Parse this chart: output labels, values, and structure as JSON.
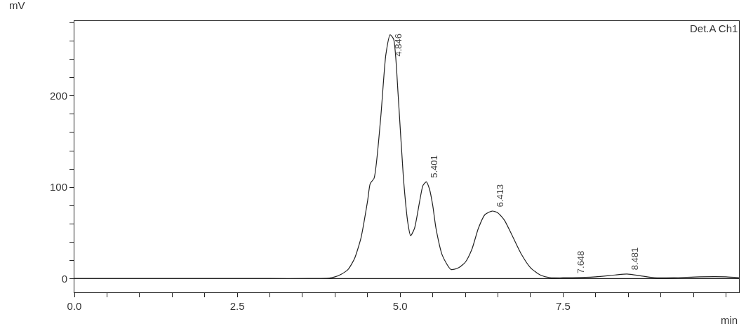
{
  "chart_data": {
    "type": "line",
    "xlabel": "min",
    "ylabel": "mV",
    "x": [
      0,
      1,
      2,
      3,
      3.6,
      3.9,
      4.0,
      4.1,
      4.2,
      4.3,
      4.4,
      4.5,
      4.54,
      4.6,
      4.7,
      4.78,
      4.846,
      4.9,
      4.97,
      5.05,
      5.12,
      5.16,
      5.22,
      5.3,
      5.35,
      5.401,
      5.45,
      5.5,
      5.55,
      5.65,
      5.78,
      5.9,
      6.0,
      6.1,
      6.2,
      6.3,
      6.413,
      6.5,
      6.6,
      6.7,
      6.85,
      7.0,
      7.15,
      7.3,
      7.5,
      7.65,
      8.0,
      8.3,
      8.481,
      8.7,
      8.9,
      9.2,
      9.6,
      10.0,
      10.2
    ],
    "series": [
      {
        "color": "#222222",
        "values": [
          0,
          0,
          0,
          0,
          0,
          0.5,
          2,
          5,
          10,
          22,
          45,
          85,
          104,
          110,
          175,
          245,
          267,
          262,
          200,
          110,
          60,
          47,
          55,
          85,
          102,
          106,
          98,
          80,
          55,
          25,
          10,
          12,
          18,
          32,
          55,
          70,
          74,
          72,
          64,
          50,
          28,
          12,
          4,
          1,
          1,
          1,
          2,
          4,
          5,
          3,
          1,
          1,
          2,
          2,
          1
        ]
      }
    ],
    "xlim": [
      0,
      10.2
    ],
    "ylim": [
      -15,
      282
    ],
    "xticks": [
      {
        "value": 0,
        "label": "0.0"
      },
      {
        "value": 0.5,
        "label": null
      },
      {
        "value": 1,
        "label": null
      },
      {
        "value": 1.5,
        "label": null
      },
      {
        "value": 2,
        "label": null
      },
      {
        "value": 2.5,
        "label": "2.5"
      },
      {
        "value": 3,
        "label": null
      },
      {
        "value": 3.5,
        "label": null
      },
      {
        "value": 4,
        "label": null
      },
      {
        "value": 4.5,
        "label": null
      },
      {
        "value": 5,
        "label": "5.0"
      },
      {
        "value": 5.5,
        "label": null
      },
      {
        "value": 6,
        "label": null
      },
      {
        "value": 6.5,
        "label": null
      },
      {
        "value": 7,
        "label": null
      },
      {
        "value": 7.5,
        "label": "7.5"
      },
      {
        "value": 8,
        "label": null
      },
      {
        "value": 8.5,
        "label": null
      },
      {
        "value": 9,
        "label": null
      },
      {
        "value": 9.5,
        "label": null
      },
      {
        "value": 10,
        "label": null
      }
    ],
    "yticks": [
      0,
      {
        "value": 20,
        "label": null
      },
      {
        "value": 40,
        "label": null
      },
      {
        "value": 60,
        "label": null
      },
      {
        "value": 80,
        "label": null
      },
      100,
      {
        "value": 120,
        "label": null
      },
      {
        "value": 140,
        "label": null
      },
      {
        "value": 160,
        "label": null
      },
      {
        "value": 180,
        "label": null
      },
      200,
      {
        "value": 220,
        "label": null
      },
      {
        "value": 240,
        "label": null
      },
      {
        "value": 260,
        "label": null
      },
      {
        "value": 280,
        "label": null
      }
    ],
    "ref_lines": [
      {
        "axis": "y",
        "value": 0,
        "label": null,
        "color": "#222222"
      }
    ],
    "annotations": [
      "Det.A Ch1",
      {
        "text": "4.846",
        "x": 4.846,
        "y": 267
      },
      {
        "text": "5.401",
        "x": 5.401,
        "y": 106
      },
      {
        "text": "6.413",
        "x": 6.413,
        "y": 74
      },
      {
        "text": "7.648",
        "x": 7.648,
        "y": 1
      },
      {
        "text": "8.481",
        "x": 8.481,
        "y": 5
      }
    ],
    "grid": false,
    "marker": "none",
    "line_style": "solid"
  }
}
